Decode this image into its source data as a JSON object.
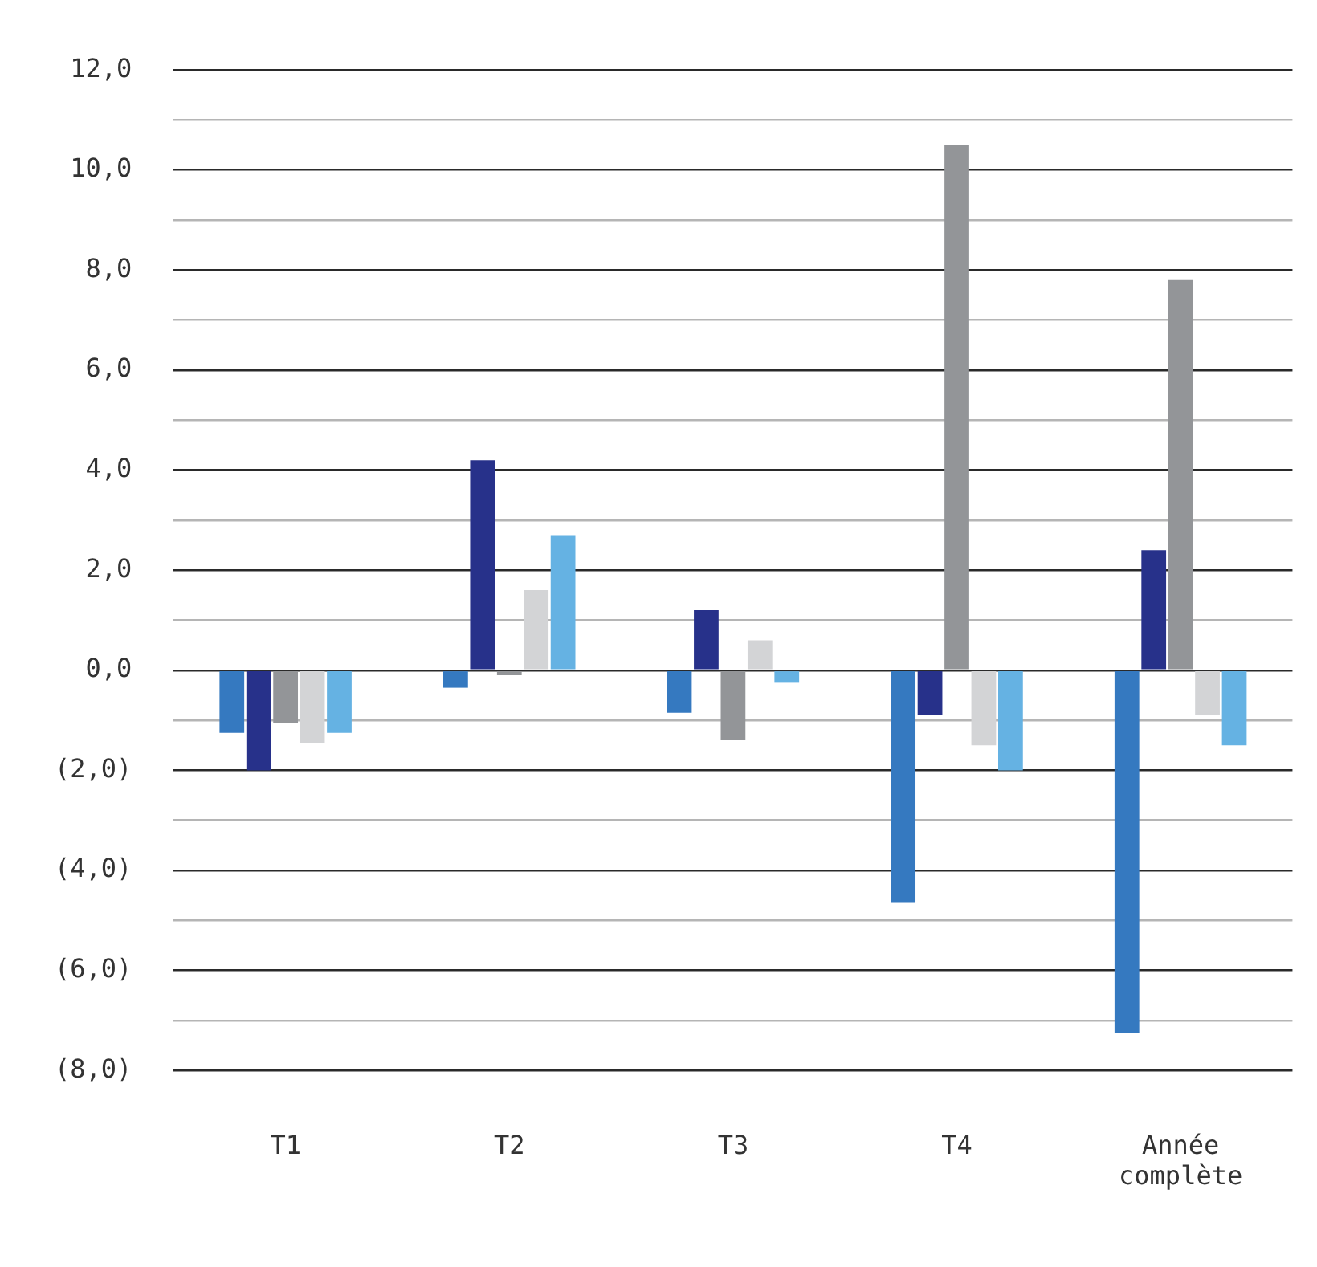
{
  "chart_data": {
    "type": "bar",
    "categories": [
      "T1",
      "T2",
      "T3",
      "T4",
      "Année complète"
    ],
    "series": [
      {
        "color": "#3579c0",
        "values": [
          -1.25,
          -0.35,
          -0.85,
          -4.65,
          -7.25
        ]
      },
      {
        "color": "#27318a",
        "values": [
          -2.0,
          4.2,
          1.2,
          -0.9,
          2.4
        ]
      },
      {
        "color": "#939598",
        "values": [
          -1.05,
          -0.1,
          -1.4,
          10.5,
          7.8
        ]
      },
      {
        "color": "#d3d4d6",
        "values": [
          -1.45,
          1.6,
          0.6,
          -1.5,
          -0.9
        ]
      },
      {
        "color": "#65b2e3",
        "values": [
          -1.25,
          2.7,
          -0.25,
          -2.0,
          -1.5
        ]
      }
    ],
    "ylim": [
      -8,
      12
    ],
    "yticks": [
      {
        "value": -8,
        "label": "(8,0)"
      },
      {
        "value": -7,
        "label": null
      },
      {
        "value": -6,
        "label": "(6,0)"
      },
      {
        "value": -5,
        "label": null
      },
      {
        "value": -4,
        "label": "(4,0)"
      },
      {
        "value": -3,
        "label": null
      },
      {
        "value": -2,
        "label": "(2,0)"
      },
      {
        "value": -1,
        "label": null
      },
      {
        "value": 0,
        "label": "0,0"
      },
      {
        "value": 1,
        "label": null
      },
      {
        "value": 2,
        "label": "2,0"
      },
      {
        "value": 3,
        "label": null
      },
      {
        "value": 4,
        "label": "4,0"
      },
      {
        "value": 5,
        "label": null
      },
      {
        "value": 6,
        "label": "6,0"
      },
      {
        "value": 7,
        "label": null
      },
      {
        "value": 8,
        "label": "8,0"
      },
      {
        "value": 9,
        "label": null
      },
      {
        "value": 10,
        "label": "10,0"
      },
      {
        "value": 11,
        "label": null
      },
      {
        "value": 12,
        "label": "12,0"
      }
    ],
    "grid": "y",
    "legend": false
  }
}
